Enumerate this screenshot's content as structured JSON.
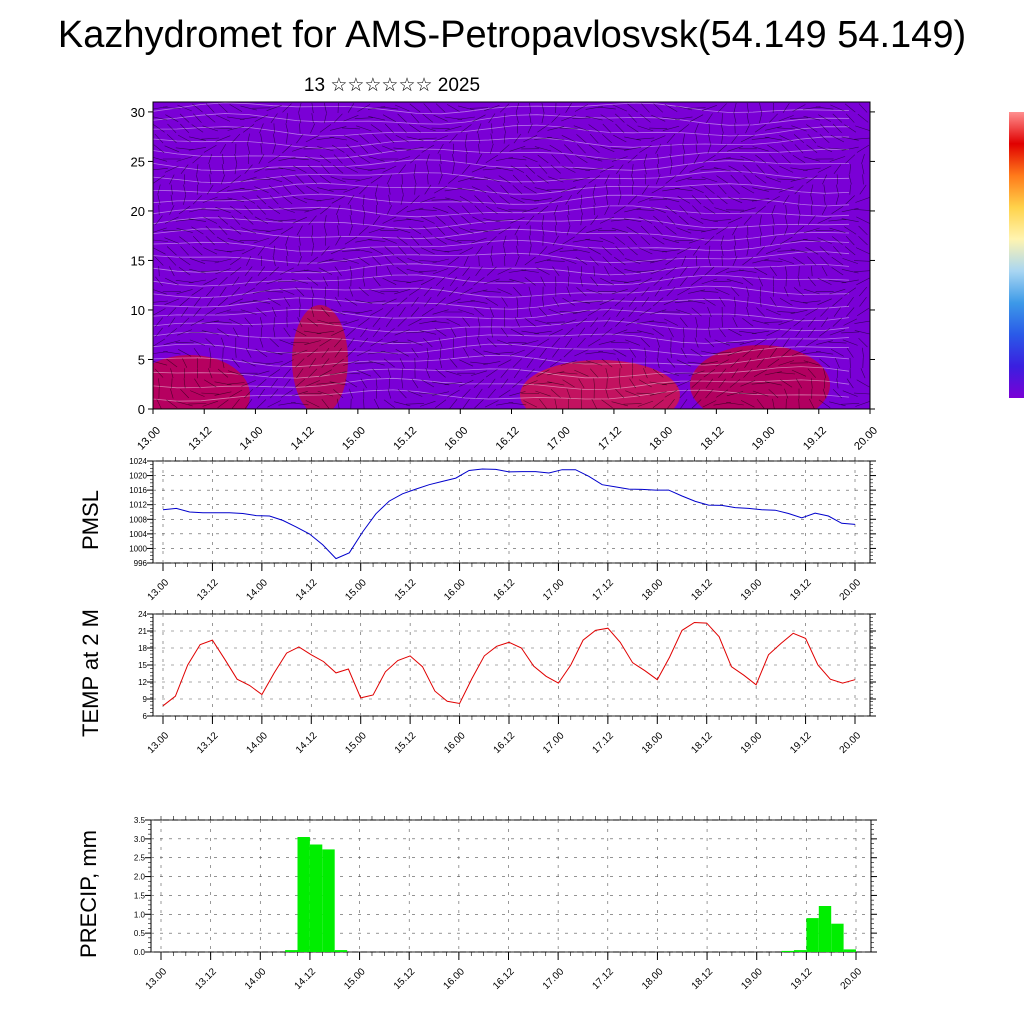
{
  "header": {
    "title": "Kazhydromet for AMS-Petropavlosvsk(54.149 54.149)",
    "subtitle": "13 ☆☆☆☆☆☆ 2025"
  },
  "chart_data": [
    {
      "type": "heatmap",
      "name": "cross-section",
      "y_ticks": [
        "0",
        "5",
        "10",
        "15",
        "20",
        "25",
        "30"
      ],
      "ylim": [
        0,
        31
      ],
      "x_ticks": [
        "13.00",
        "13.12",
        "14.00",
        "14.12",
        "15.00",
        "15.12",
        "16.00",
        "16.12",
        "17.00",
        "17.12",
        "18.00",
        "18.12",
        "19.00",
        "19.12",
        "20.00"
      ],
      "colormap": [
        "#7a00d6",
        "#3a1fe0",
        "#2a5ae8",
        "#3d9ae8",
        "#a9d6f2",
        "#fff4b0",
        "#ffd24a",
        "#ffae2e",
        "#ff7a1a",
        "#ff3a0a",
        "#e00000"
      ],
      "colorbar_colors": [
        "#ff9090",
        "#e00000",
        "#ff7a1a",
        "#ffd24a",
        "#fff4b0",
        "#a9d6f2",
        "#3d9ae8",
        "#2a5ae8",
        "#3a1fe0",
        "#7a00d6"
      ]
    },
    {
      "type": "line",
      "name": "PMSL",
      "ylabel": "PMSL",
      "ylim": [
        996,
        1024
      ],
      "y_ticks": [
        "996",
        "1000",
        "1004",
        "1008",
        "1012",
        "1016",
        "1020",
        "1024"
      ],
      "x_ticks": [
        "13.00",
        "13.12",
        "14.00",
        "14.12",
        "15.00",
        "15.12",
        "16.00",
        "16.12",
        "17.00",
        "17.12",
        "18.00",
        "18.12",
        "19.00",
        "19.12",
        "20.00"
      ],
      "color": "#0000cc",
      "values": [
        1010.6,
        1011.0,
        1010.0,
        1009.8,
        1009.8,
        1009.8,
        1009.6,
        1009.0,
        1008.9,
        1007.7,
        1005.9,
        1004.0,
        1001.0,
        997.2,
        998.8,
        1004.5,
        1009.5,
        1013.0,
        1015.0,
        1016.3,
        1017.5,
        1018.4,
        1019.3,
        1021.4,
        1021.8,
        1021.7,
        1021.0,
        1021.1,
        1021.1,
        1020.7,
        1021.6,
        1021.6,
        1019.8,
        1017.5,
        1016.9,
        1016.3,
        1016.2,
        1016.0,
        1016.0,
        1014.4,
        1012.9,
        1011.9,
        1011.8,
        1011.2,
        1011.0,
        1010.6,
        1010.5,
        1009.6,
        1008.4,
        1009.7,
        1008.9,
        1006.9,
        1006.6
      ]
    },
    {
      "type": "line",
      "name": "TEMP at 2 M",
      "ylabel": "TEMP at 2 M",
      "ylim": [
        6,
        24
      ],
      "y_ticks": [
        "6",
        "9",
        "12",
        "15",
        "18",
        "21",
        "24"
      ],
      "x_ticks": [
        "13.00",
        "13.12",
        "14.00",
        "14.12",
        "15.00",
        "15.12",
        "16.00",
        "16.12",
        "17.00",
        "17.12",
        "18.00",
        "18.12",
        "19.00",
        "19.12",
        "20.00"
      ],
      "color": "#e00000",
      "values": [
        7.8,
        9.5,
        15.0,
        18.6,
        19.4,
        16.0,
        12.5,
        11.4,
        9.8,
        13.6,
        17.1,
        18.2,
        16.8,
        15.6,
        13.6,
        14.3,
        9.2,
        9.7,
        13.8,
        15.8,
        16.6,
        14.7,
        10.4,
        8.6,
        8.2,
        12.6,
        16.6,
        18.3,
        19.0,
        18.0,
        14.8,
        13.0,
        11.8,
        15.0,
        19.4,
        21.1,
        21.5,
        19.0,
        15.4,
        14.0,
        12.4,
        16.4,
        21.1,
        22.5,
        22.4,
        20.0,
        14.7,
        13.2,
        11.5,
        16.8,
        18.8,
        20.6,
        19.7,
        15.0,
        12.5,
        11.8,
        12.4
      ]
    },
    {
      "type": "bar",
      "name": "PRECIP, mm",
      "ylabel": "PRECIP, mm",
      "ylim": [
        0,
        3.5
      ],
      "y_ticks": [
        "0.0",
        "0.5",
        "1.0",
        "1.5",
        "2.0",
        "2.5",
        "3.0",
        "3.5"
      ],
      "x_ticks": [
        "13.00",
        "13.12",
        "14.00",
        "14.12",
        "15.00",
        "15.12",
        "16.00",
        "16.12",
        "17.00",
        "17.12",
        "18.00",
        "18.12",
        "19.00",
        "19.12",
        "20.00"
      ],
      "color": "#00ee00",
      "bars": [
        {
          "t": 10.5,
          "v": 0.05
        },
        {
          "t": 11.5,
          "v": 3.05
        },
        {
          "t": 12.5,
          "v": 2.85
        },
        {
          "t": 13.5,
          "v": 2.72
        },
        {
          "t": 14.5,
          "v": 0.05
        },
        {
          "t": 50.5,
          "v": 0.03
        },
        {
          "t": 51.5,
          "v": 0.05
        },
        {
          "t": 52.5,
          "v": 0.9
        },
        {
          "t": 53.5,
          "v": 1.22
        },
        {
          "t": 54.5,
          "v": 0.75
        },
        {
          "t": 55.5,
          "v": 0.07
        }
      ]
    }
  ]
}
